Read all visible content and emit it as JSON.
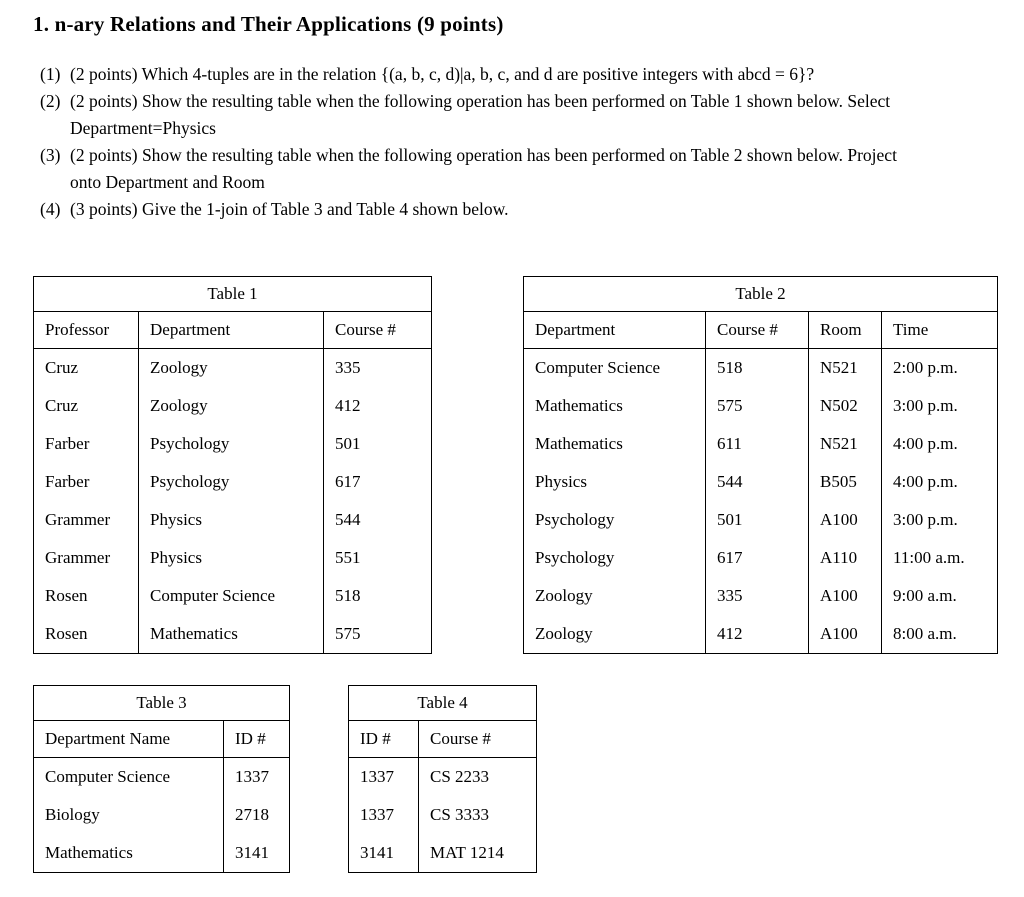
{
  "page": {
    "title": "1. n-ary Relations and Their Applications (9 points)"
  },
  "questions": [
    {
      "number": "(1)",
      "text": "(2 points) Which 4-tuples are in the relation {(a, b, c, d)|a, b, c, and d are positive integers with abcd = 6}?"
    },
    {
      "number": "(2)",
      "text": "(2 points) Show the resulting table when the following operation has been performed on Table 1 shown below. Select Department=Physics"
    },
    {
      "number": "(3)",
      "text": "(2 points) Show the resulting table when the following operation has been performed on Table 2 shown below. Project onto Department and Room"
    },
    {
      "number": "(4)",
      "text": "(3 points) Give the 1-join of Table 3 and Table 4 shown below."
    }
  ],
  "tables": {
    "table1": {
      "caption": "Table 1",
      "headers": [
        "Professor",
        "Department",
        "Course #"
      ],
      "rows": [
        [
          "Cruz",
          "Zoology",
          "335"
        ],
        [
          "Cruz",
          "Zoology",
          "412"
        ],
        [
          "Farber",
          "Psychology",
          "501"
        ],
        [
          "Farber",
          "Psychology",
          "617"
        ],
        [
          "Grammer",
          "Physics",
          "544"
        ],
        [
          "Grammer",
          "Physics",
          "551"
        ],
        [
          "Rosen",
          "Computer Science",
          "518"
        ],
        [
          "Rosen",
          "Mathematics",
          "575"
        ]
      ]
    },
    "table2": {
      "caption": "Table 2",
      "headers": [
        "Department",
        "Course #",
        "Room",
        "Time"
      ],
      "rows": [
        [
          "Computer Science",
          "518",
          "N521",
          "2:00 p.m."
        ],
        [
          "Mathematics",
          "575",
          "N502",
          "3:00 p.m."
        ],
        [
          "Mathematics",
          "611",
          "N521",
          "4:00 p.m."
        ],
        [
          "Physics",
          "544",
          "B505",
          "4:00 p.m."
        ],
        [
          "Psychology",
          "501",
          "A100",
          "3:00 p.m."
        ],
        [
          "Psychology",
          "617",
          "A110",
          "11:00 a.m."
        ],
        [
          "Zoology",
          "335",
          "A100",
          "9:00 a.m."
        ],
        [
          "Zoology",
          "412",
          "A100",
          "8:00 a.m."
        ]
      ]
    },
    "table3": {
      "caption": "Table 3",
      "headers": [
        "Department Name",
        "ID #"
      ],
      "rows": [
        [
          "Computer Science",
          "1337"
        ],
        [
          "Biology",
          "2718"
        ],
        [
          "Mathematics",
          "3141"
        ]
      ]
    },
    "table4": {
      "caption": "Table 4",
      "headers": [
        "ID #",
        "Course #"
      ],
      "rows": [
        [
          "1337",
          "CS 2233"
        ],
        [
          "1337",
          "CS 3333"
        ],
        [
          "3141",
          "MAT 1214"
        ]
      ]
    }
  }
}
